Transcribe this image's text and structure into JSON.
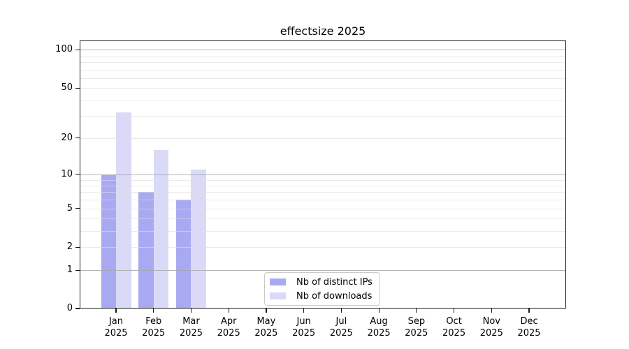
{
  "chart_data": {
    "type": "bar",
    "title": "effectsize 2025",
    "x_categories": [
      "Jan",
      "Feb",
      "Mar",
      "Apr",
      "May",
      "Jun",
      "Jul",
      "Aug",
      "Sep",
      "Oct",
      "Nov",
      "Dec"
    ],
    "x_year": "2025",
    "series": [
      {
        "name": "Nb of distinct IPs",
        "color": "#a9a9f2",
        "values": [
          10,
          7,
          6,
          0,
          0,
          0,
          0,
          0,
          0,
          0,
          0,
          0
        ]
      },
      {
        "name": "Nb of downloads",
        "color": "#dadaf8",
        "values": [
          32,
          16,
          11,
          0,
          0,
          0,
          0,
          0,
          0,
          0,
          0,
          0
        ]
      }
    ],
    "y_scale": "log10(1+x)",
    "y_ticks": [
      100,
      50,
      20,
      10,
      5,
      2,
      1,
      0
    ],
    "ylim": [
      0,
      118
    ],
    "gridlines": {
      "major": [
        1,
        10,
        100
      ],
      "minor": [
        2,
        3,
        4,
        5,
        6,
        7,
        8,
        9,
        20,
        30,
        40,
        50,
        60,
        70,
        80,
        90
      ]
    },
    "legend_position": "bottom-center",
    "grid": true
  }
}
